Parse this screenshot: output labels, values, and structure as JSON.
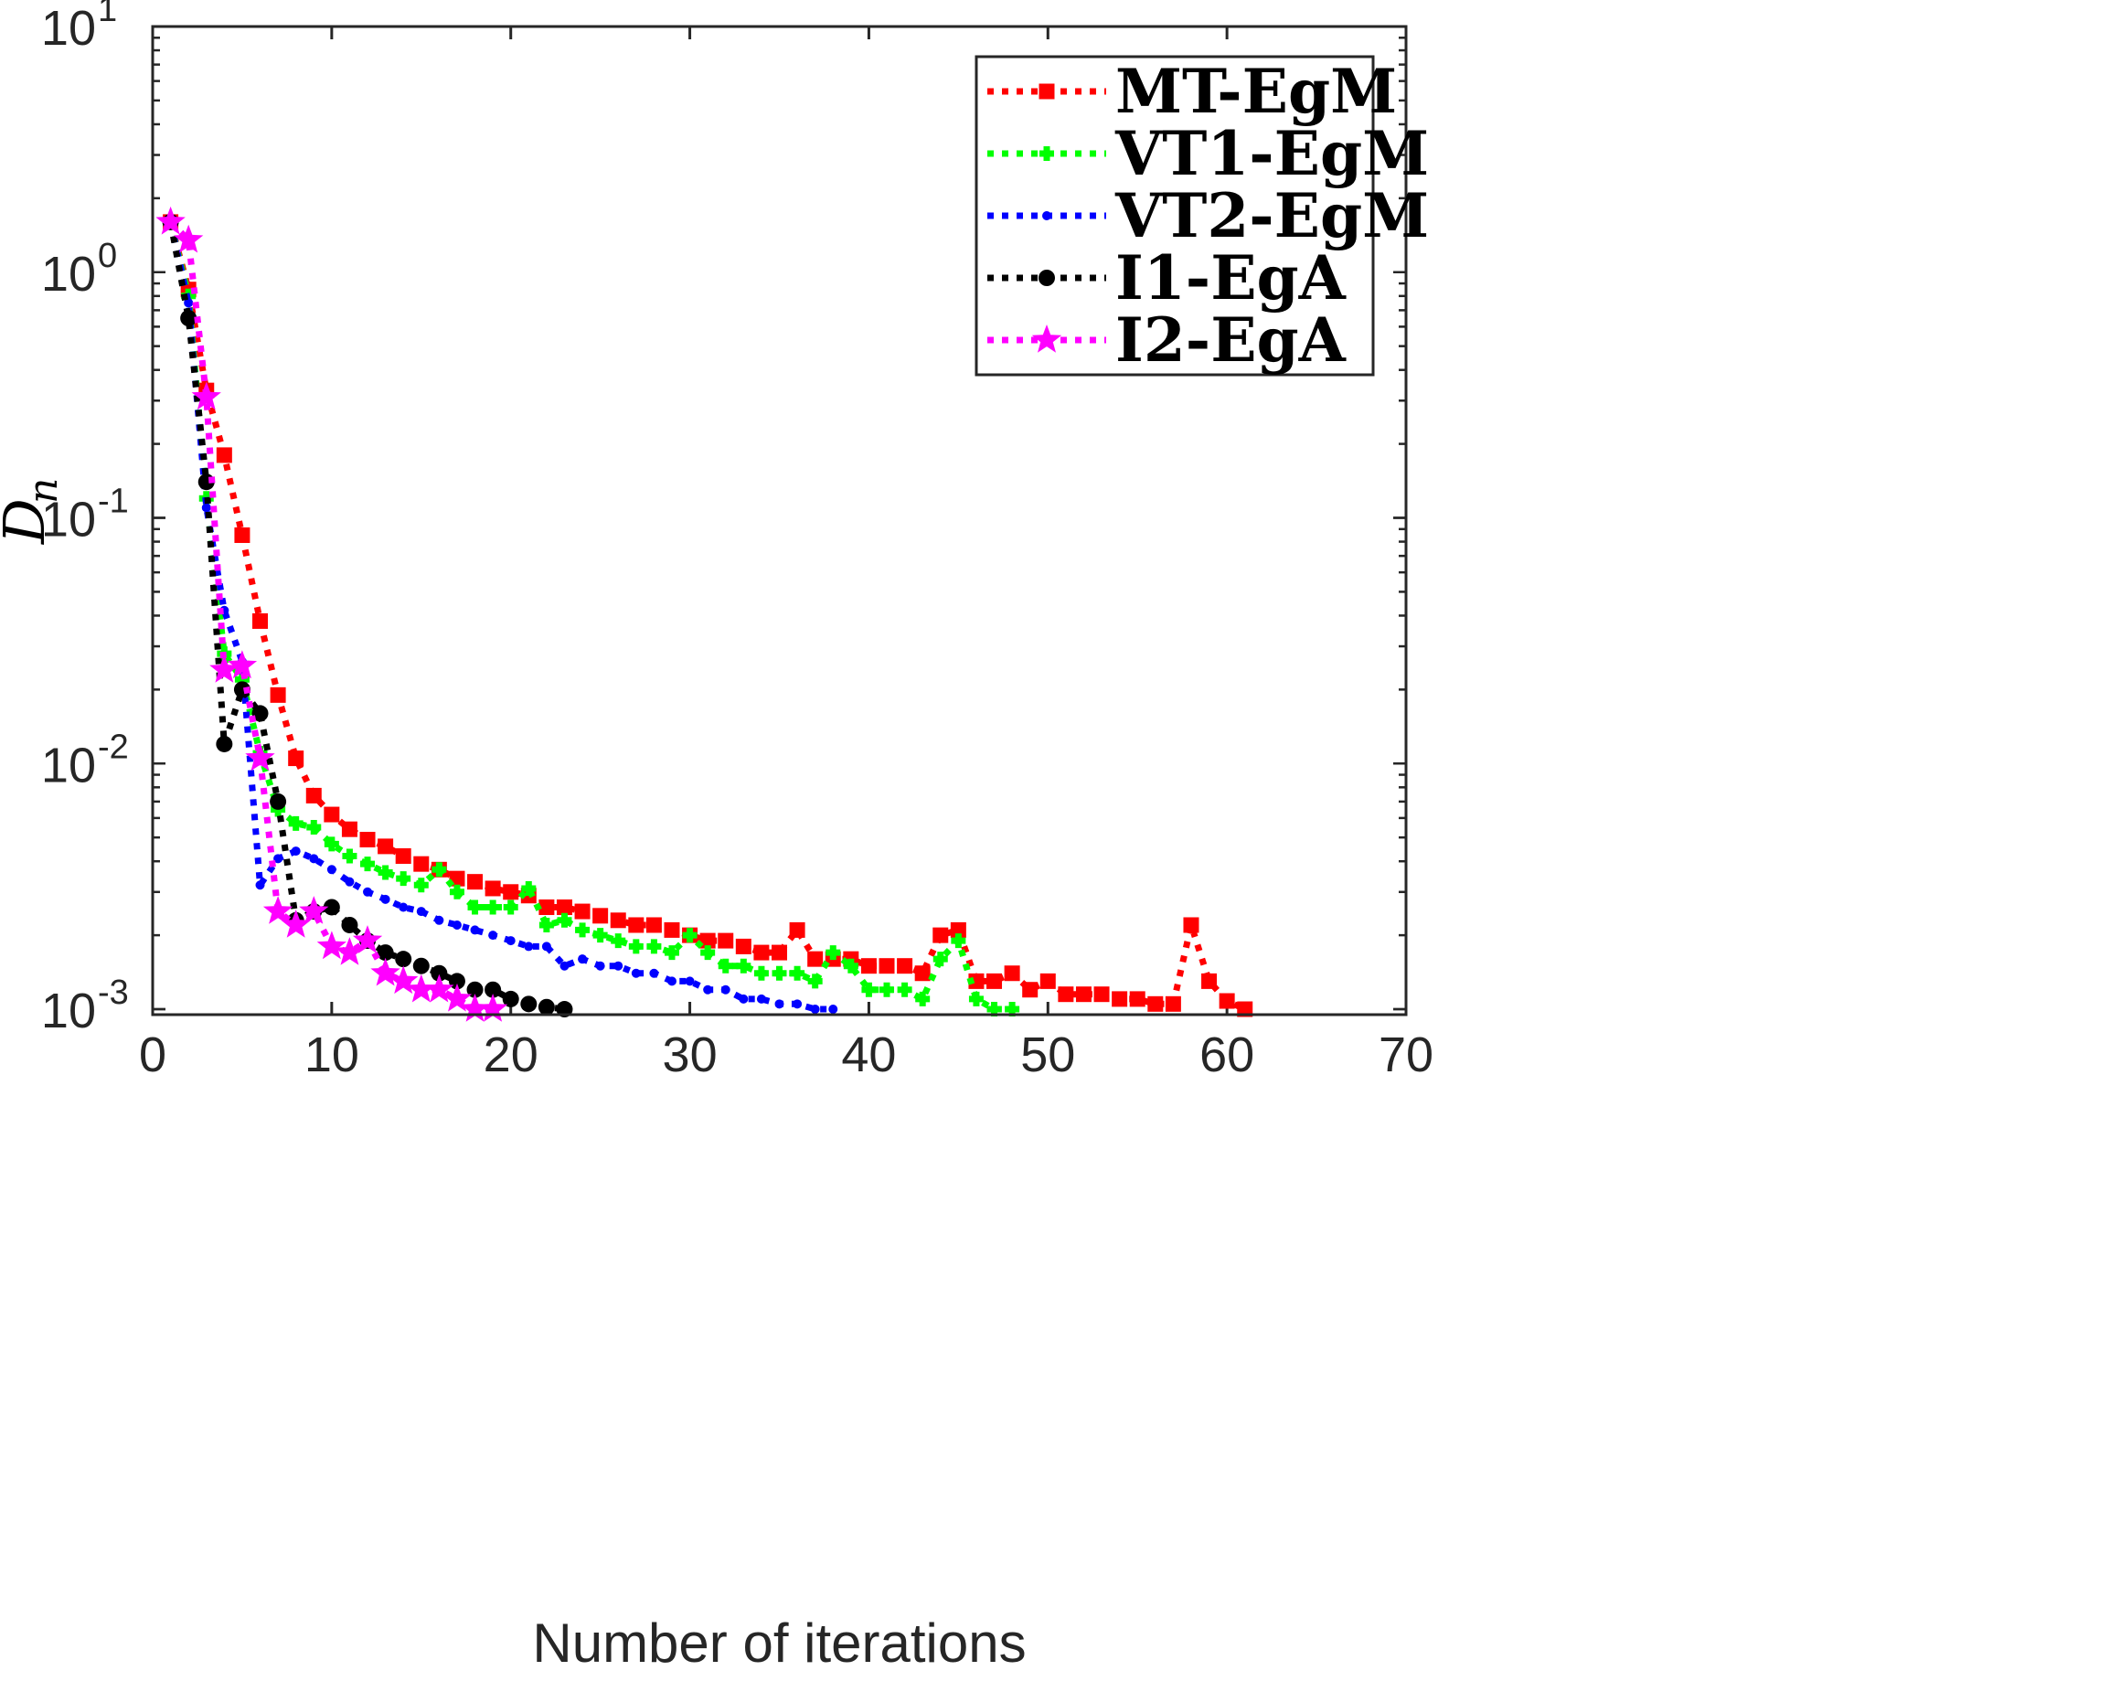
{
  "chart_data": {
    "type": "line",
    "title": "",
    "xlabel": "Number of iterations",
    "ylabel": "D",
    "ylabel_subscript": "n",
    "xlim": [
      0,
      70
    ],
    "ylim": [
      0.00095,
      10
    ],
    "yscale": "log",
    "xticks": [
      0,
      10,
      20,
      30,
      40,
      50,
      60,
      70
    ],
    "xtick_labels": [
      "0",
      "10",
      "20",
      "30",
      "40",
      "50",
      "60",
      "70"
    ],
    "yticks": [
      0.001,
      0.01,
      0.1,
      1,
      10
    ],
    "ytick_base": "10",
    "ytick_exponents": [
      "-3",
      "-2",
      "-1",
      "0",
      "1"
    ],
    "legend_position": "top-right",
    "series": [
      {
        "name": "MT-EgM",
        "color": "#ff0000",
        "marker": "square",
        "x": [
          1,
          2,
          3,
          4,
          5,
          6,
          7,
          8,
          9,
          10,
          11,
          12,
          13,
          14,
          15,
          16,
          17,
          18,
          19,
          20,
          21,
          22,
          23,
          24,
          25,
          26,
          27,
          28,
          29,
          30,
          31,
          32,
          33,
          34,
          35,
          36,
          37,
          38,
          39,
          40,
          41,
          42,
          43,
          44,
          45,
          46,
          47,
          48,
          49,
          50,
          51,
          52,
          53,
          54,
          55,
          56,
          57,
          58,
          59,
          60,
          61
        ],
        "values": [
          1.6,
          0.85,
          0.33,
          0.18,
          0.085,
          0.038,
          0.019,
          0.0105,
          0.0074,
          0.0062,
          0.0054,
          0.0049,
          0.0046,
          0.0042,
          0.0039,
          0.0037,
          0.0034,
          0.0033,
          0.0031,
          0.003,
          0.0029,
          0.0026,
          0.0026,
          0.0025,
          0.0024,
          0.0023,
          0.0022,
          0.0022,
          0.0021,
          0.002,
          0.0019,
          0.0019,
          0.0018,
          0.0017,
          0.0017,
          0.0021,
          0.0016,
          0.0016,
          0.0016,
          0.0015,
          0.0015,
          0.0015,
          0.0014,
          0.002,
          0.0021,
          0.0013,
          0.0013,
          0.0014,
          0.0012,
          0.0013,
          0.00115,
          0.00115,
          0.00115,
          0.0011,
          0.0011,
          0.00105,
          0.00105,
          0.0022,
          0.0013,
          0.00108,
          0.001
        ]
      },
      {
        "name": "VT1-EgM",
        "color": "#00ff00",
        "marker": "plus",
        "x": [
          1,
          2,
          3,
          4,
          5,
          6,
          7,
          8,
          9,
          10,
          11,
          12,
          13,
          14,
          15,
          16,
          17,
          18,
          19,
          20,
          21,
          22,
          23,
          24,
          25,
          26,
          27,
          28,
          29,
          30,
          31,
          32,
          33,
          34,
          35,
          36,
          37,
          38,
          39,
          40,
          41,
          42,
          43,
          44,
          45,
          46,
          47,
          48
        ],
        "values": [
          1.6,
          0.8,
          0.12,
          0.028,
          0.022,
          0.011,
          0.0065,
          0.0057,
          0.0055,
          0.0047,
          0.0042,
          0.0039,
          0.0036,
          0.0034,
          0.0032,
          0.0037,
          0.003,
          0.0026,
          0.0026,
          0.0026,
          0.0031,
          0.0022,
          0.0023,
          0.0021,
          0.002,
          0.0019,
          0.0018,
          0.0018,
          0.0017,
          0.002,
          0.0017,
          0.0015,
          0.0015,
          0.0014,
          0.0014,
          0.0014,
          0.0013,
          0.0017,
          0.0015,
          0.0012,
          0.0012,
          0.0012,
          0.0011,
          0.0016,
          0.0019,
          0.0011,
          0.001,
          0.001
        ]
      },
      {
        "name": "VT2-EgM",
        "color": "#0000ff",
        "marker": "dot",
        "x": [
          1,
          2,
          3,
          4,
          5,
          6,
          7,
          8,
          9,
          10,
          11,
          12,
          13,
          14,
          15,
          16,
          17,
          18,
          19,
          20,
          21,
          22,
          23,
          24,
          25,
          26,
          27,
          28,
          29,
          30,
          31,
          32,
          33,
          34,
          35,
          36,
          37,
          38
        ],
        "values": [
          1.6,
          0.75,
          0.11,
          0.042,
          0.026,
          0.0032,
          0.0041,
          0.0044,
          0.0041,
          0.0037,
          0.0033,
          0.003,
          0.0028,
          0.0026,
          0.0025,
          0.0023,
          0.0022,
          0.0021,
          0.002,
          0.0019,
          0.0018,
          0.0018,
          0.0015,
          0.0016,
          0.0015,
          0.0015,
          0.0014,
          0.0014,
          0.0013,
          0.0013,
          0.0012,
          0.0012,
          0.0011,
          0.0011,
          0.00105,
          0.00105,
          0.001,
          0.001
        ]
      },
      {
        "name": "I1-EgA",
        "color": "#000000",
        "marker": "circle",
        "x": [
          1,
          2,
          3,
          4,
          5,
          6,
          7,
          8,
          9,
          10,
          11,
          12,
          13,
          14,
          15,
          16,
          17,
          18,
          19,
          20,
          21,
          22,
          23
        ],
        "values": [
          1.6,
          0.65,
          0.14,
          0.012,
          0.02,
          0.016,
          0.007,
          0.0023,
          0.0025,
          0.0026,
          0.0022,
          0.0019,
          0.0017,
          0.0016,
          0.0015,
          0.0014,
          0.0013,
          0.0012,
          0.0012,
          0.0011,
          0.00105,
          0.00102,
          0.001
        ]
      },
      {
        "name": "I2-EgA",
        "color": "#ff00ff",
        "marker": "star",
        "x": [
          1,
          2,
          3,
          4,
          5,
          6,
          7,
          8,
          9,
          10,
          11,
          12,
          13,
          14,
          15,
          16,
          17,
          18,
          19
        ],
        "values": [
          1.6,
          1.35,
          0.31,
          0.024,
          0.025,
          0.0105,
          0.0025,
          0.0022,
          0.0025,
          0.0018,
          0.0017,
          0.0019,
          0.0014,
          0.0013,
          0.0012,
          0.0012,
          0.0011,
          0.001,
          0.001
        ]
      }
    ]
  }
}
